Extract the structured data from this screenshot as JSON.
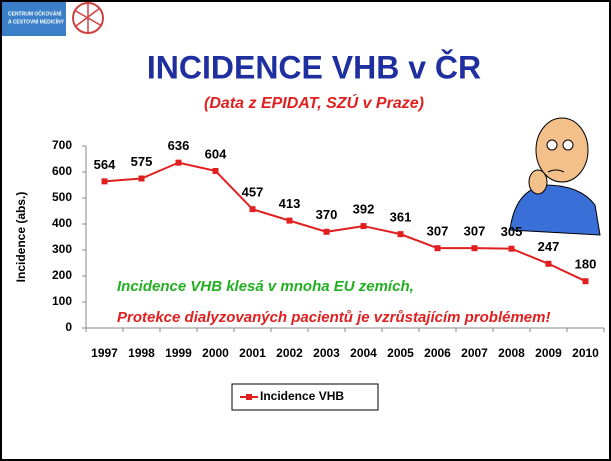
{
  "logo": [
    "CENTRUM OČKOVÁNÍ",
    "A CESTOVNÍ MEDICÍNY"
  ],
  "chart_data": {
    "type": "line",
    "title": "INCIDENCE VHB v ČR",
    "subtitle": "(Data z EPIDAT, SZÚ v Praze)",
    "y_label": "Incidence (abs.)",
    "categories": [
      "1997",
      "1998",
      "1999",
      "2000",
      "2001",
      "2002",
      "2003",
      "2004",
      "2005",
      "2006",
      "2007",
      "2008",
      "2009",
      "2010"
    ],
    "series": [
      {
        "name": "Incidence VHB",
        "color": "#e02020",
        "values": [
          564,
          575,
          636,
          604,
          457,
          413,
          370,
          392,
          361,
          307,
          307,
          305,
          247,
          180
        ]
      }
    ],
    "ylim": [
      0,
      700
    ],
    "yticks": [
      0,
      100,
      200,
      300,
      400,
      500,
      600,
      700
    ],
    "annotations": [
      {
        "text": "Incidence VHB klesá v mnoha EU zemích,",
        "color": "#22b022"
      },
      {
        "text": "Protekce dialyzovaných pacientů je vzrůstajícím problémem!",
        "color": "#e02020"
      }
    ],
    "legend": "bottom"
  }
}
